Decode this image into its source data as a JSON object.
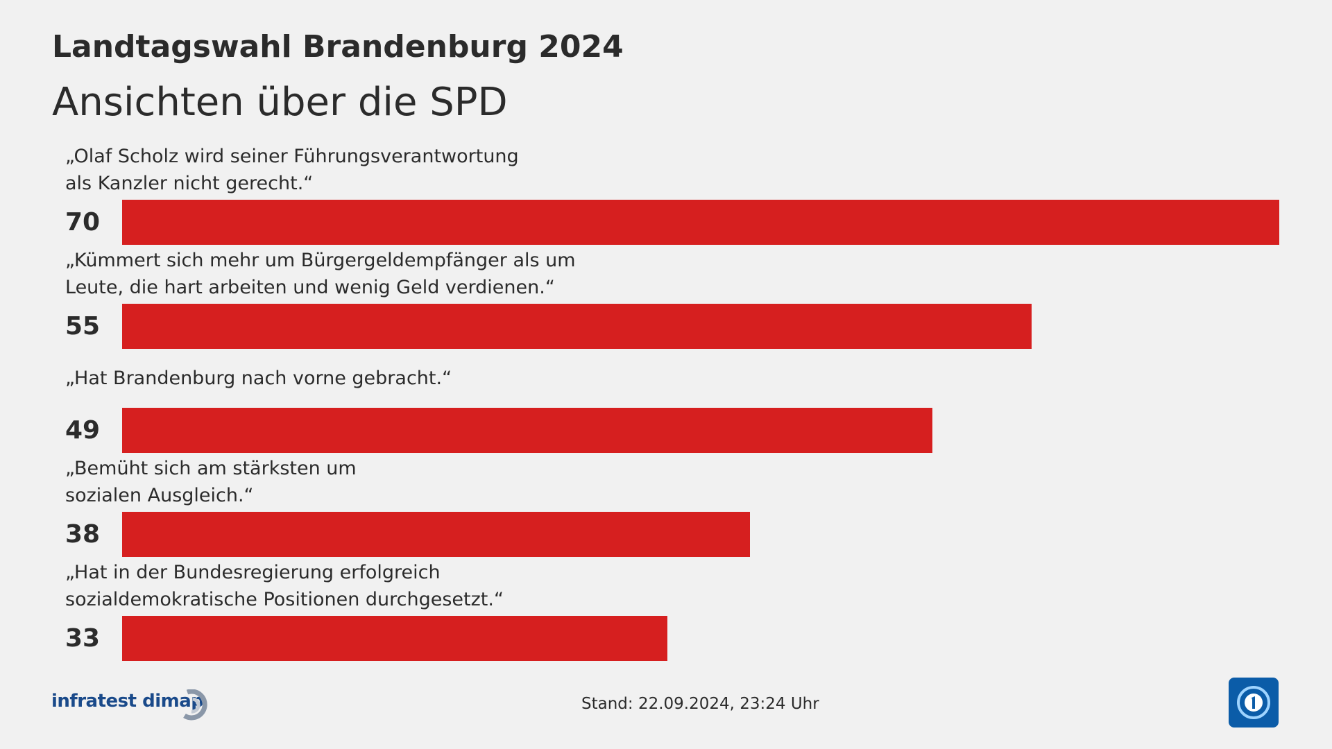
{
  "chart_data": {
    "type": "bar",
    "orientation": "horizontal",
    "title": "Landtagswahl Brandenburg 2024",
    "subtitle": "Ansichten über die SPD",
    "categories": [
      "„Olaf Scholz wird seiner Führungsverantwortung\nals Kanzler nicht gerecht.“",
      "„Kümmert sich mehr um Bürgergeldempfänger als um\nLeute, die hart arbeiten und wenig Geld verdienen.“",
      "„Hat Brandenburg nach vorne gebracht.“",
      "„Bemüht sich am stärksten um\nsozialen Ausgleich.“",
      "„Hat in der Bundesregierung erfolgreich\nsozialdemokratische Positionen durchgesetzt.“"
    ],
    "values": [
      70,
      55,
      49,
      38,
      33
    ],
    "color": "#d61f1f",
    "xlim": [
      0,
      70
    ],
    "source": "infratest dimap",
    "note": "Stand:  22.09.2024, 23:24 Uhr"
  }
}
